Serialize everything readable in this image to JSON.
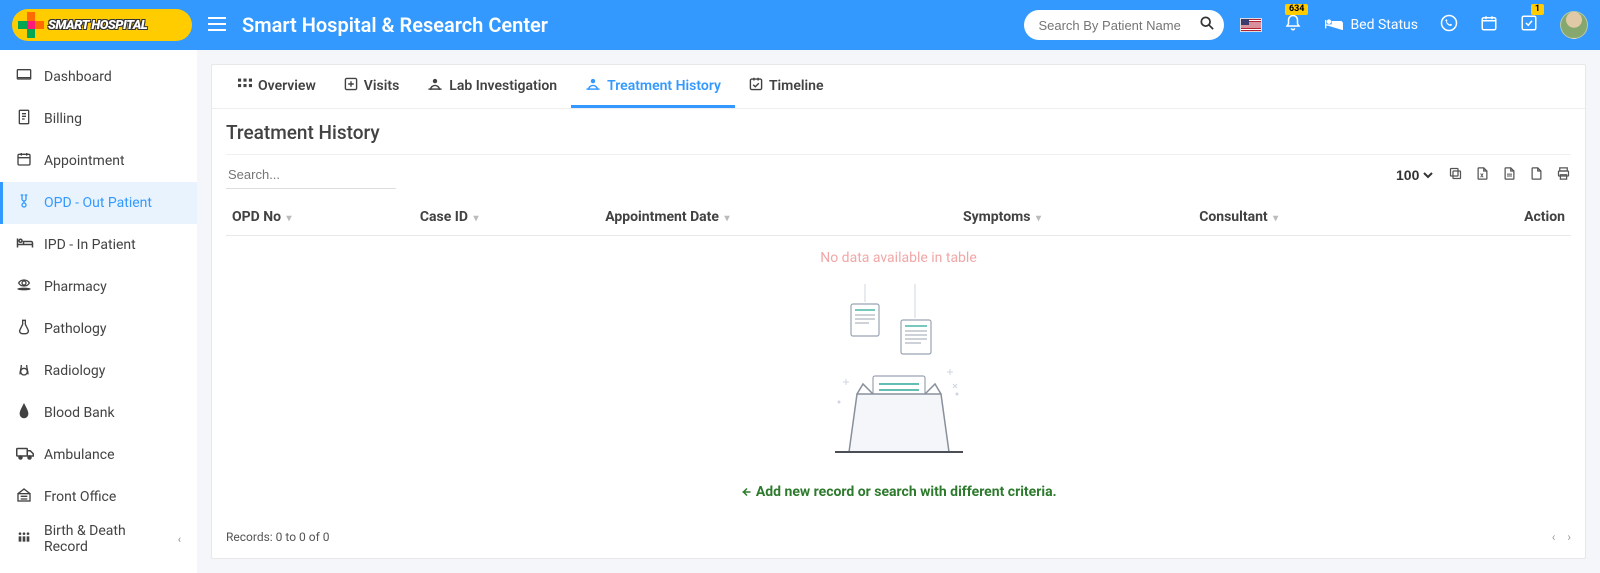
{
  "brand": "Smart Hospital & Research Center",
  "logo_text": "SMART HOSPITAL",
  "search": {
    "placeholder": "Search By Patient Name"
  },
  "notifications_count": "634",
  "tasks_count": "1",
  "bed_status_label": "Bed Status",
  "sidebar": [
    {
      "label": "Dashboard",
      "name": "sidebar-dashboard",
      "active": false,
      "expandable": false
    },
    {
      "label": "Billing",
      "name": "sidebar-billing",
      "active": false,
      "expandable": false
    },
    {
      "label": "Appointment",
      "name": "sidebar-appointment",
      "active": false,
      "expandable": false
    },
    {
      "label": "OPD - Out Patient",
      "name": "sidebar-opd",
      "active": true,
      "expandable": false
    },
    {
      "label": "IPD - In Patient",
      "name": "sidebar-ipd",
      "active": false,
      "expandable": false
    },
    {
      "label": "Pharmacy",
      "name": "sidebar-pharmacy",
      "active": false,
      "expandable": false
    },
    {
      "label": "Pathology",
      "name": "sidebar-pathology",
      "active": false,
      "expandable": false
    },
    {
      "label": "Radiology",
      "name": "sidebar-radiology",
      "active": false,
      "expandable": false
    },
    {
      "label": "Blood Bank",
      "name": "sidebar-blood-bank",
      "active": false,
      "expandable": false
    },
    {
      "label": "Ambulance",
      "name": "sidebar-ambulance",
      "active": false,
      "expandable": false
    },
    {
      "label": "Front Office",
      "name": "sidebar-front-office",
      "active": false,
      "expandable": false
    },
    {
      "label": "Birth & Death Record",
      "name": "sidebar-birth-death",
      "active": false,
      "expandable": true
    }
  ],
  "tabs": [
    {
      "label": "Overview",
      "name": "tab-overview",
      "active": false
    },
    {
      "label": "Visits",
      "name": "tab-visits",
      "active": false
    },
    {
      "label": "Lab Investigation",
      "name": "tab-lab",
      "active": false
    },
    {
      "label": "Treatment History",
      "name": "tab-treatment-history",
      "active": true
    },
    {
      "label": "Timeline",
      "name": "tab-timeline",
      "active": false
    }
  ],
  "page_title": "Treatment History",
  "table_search_placeholder": "Search...",
  "page_size_options": [
    "100"
  ],
  "page_size_selected": "100",
  "columns": [
    {
      "label": "OPD No",
      "name": "col-opd-no",
      "sortable": true
    },
    {
      "label": "Case ID",
      "name": "col-case-id",
      "sortable": true
    },
    {
      "label": "Appointment Date",
      "name": "col-appointment-date",
      "sortable": true
    },
    {
      "label": "Symptoms",
      "name": "col-symptoms",
      "sortable": true
    },
    {
      "label": "Consultant",
      "name": "col-consultant",
      "sortable": true
    },
    {
      "label": "Action",
      "name": "col-action",
      "sortable": false,
      "align": "right"
    }
  ],
  "no_data_text": "No data available in table",
  "empty_message": "Add new record or search with different criteria.",
  "records_text": "Records: 0 to 0 of 0",
  "colors": {
    "primary": "#3399ff",
    "sidebar_active_bg": "#e8f3fe",
    "no_data": "#f1a7a7",
    "empty_msg": "#2d7a2d",
    "badge_bg": "#ffcc00"
  }
}
